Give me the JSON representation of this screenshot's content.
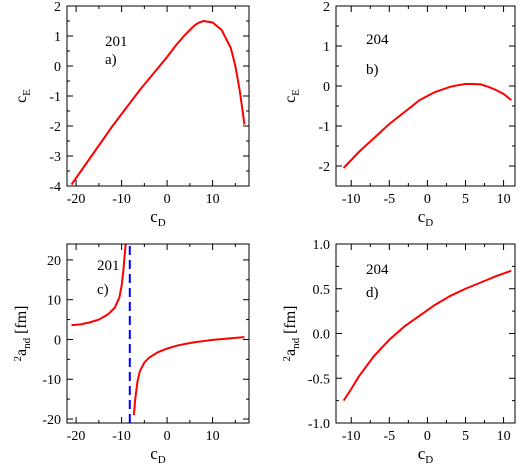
{
  "chart_data": [
    {
      "id": "a",
      "type": "line",
      "annotations": [
        "201",
        "a)"
      ],
      "xlabel": {
        "base": "c",
        "sub": "D"
      },
      "ylabel": {
        "base": "c",
        "sub": "E"
      },
      "xlim": [
        -22,
        18
      ],
      "ylim": [
        -4,
        2
      ],
      "xticks": [
        -20,
        -10,
        0,
        10
      ],
      "yticks": [
        -4,
        -3,
        -2,
        -1,
        0,
        1,
        2
      ],
      "series": [
        {
          "color": "#ff0000",
          "style": "solid",
          "x": [
            -21,
            -18,
            -15,
            -12,
            -9,
            -6,
            -3,
            0,
            2,
            4,
            6,
            7,
            8,
            10,
            12,
            14,
            15,
            16,
            17
          ],
          "y": [
            -3.95,
            -3.3,
            -2.65,
            -2.0,
            -1.4,
            -0.8,
            -0.25,
            0.3,
            0.7,
            1.05,
            1.35,
            1.45,
            1.5,
            1.45,
            1.2,
            0.6,
            0.0,
            -0.85,
            -1.95
          ]
        }
      ]
    },
    {
      "id": "b",
      "type": "line",
      "annotations": [
        "204",
        "b)"
      ],
      "xlabel": {
        "base": "c",
        "sub": "D"
      },
      "ylabel": {
        "base": "c",
        "sub": "E"
      },
      "xlim": [
        -12,
        11.5
      ],
      "ylim": [
        -2.5,
        2
      ],
      "xticks": [
        -10,
        -5,
        0,
        5,
        10
      ],
      "yticks": [
        -2,
        -1,
        0,
        1,
        2
      ],
      "series": [
        {
          "color": "#ff0000",
          "style": "solid",
          "x": [
            -11,
            -9,
            -7,
            -5,
            -3,
            -1,
            1,
            3,
            4,
            5,
            6,
            7,
            8,
            9,
            10,
            11
          ],
          "y": [
            -2.05,
            -1.65,
            -1.3,
            -0.95,
            -0.65,
            -0.35,
            -0.15,
            -0.02,
            0.02,
            0.05,
            0.05,
            0.04,
            -0.02,
            -0.1,
            -0.2,
            -0.35
          ]
        }
      ]
    },
    {
      "id": "c",
      "type": "line",
      "annotations": [
        "201",
        "c)"
      ],
      "xlabel": {
        "base": "c",
        "sub": "D"
      },
      "ylabel": {
        "sup": "2",
        "base": "a",
        "sub": "nd",
        "unit": " [fm]"
      },
      "xlim": [
        -22,
        18
      ],
      "ylim": [
        -21,
        24
      ],
      "xticks": [
        -20,
        -10,
        0,
        10
      ],
      "yticks": [
        -20,
        -10,
        0,
        10,
        20
      ],
      "series": [
        {
          "color": "#ff0000",
          "style": "solid",
          "x": [
            -21,
            -19,
            -17,
            -15,
            -13,
            -11.5,
            -10.5,
            -10.0,
            -9.6,
            -9.3,
            -9.1
          ],
          "y": [
            3.6,
            3.8,
            4.3,
            5.0,
            6.3,
            8.0,
            10.5,
            13.5,
            17.5,
            21.5,
            24
          ]
        },
        {
          "color": "#ff0000",
          "style": "solid",
          "x": [
            -7.3,
            -7.0,
            -6.5,
            -6.0,
            -5.0,
            -4.0,
            -2.0,
            0,
            2,
            4,
            6,
            8,
            10,
            12,
            14,
            16,
            17
          ],
          "y": [
            -19.0,
            -15.0,
            -10.5,
            -8.0,
            -5.8,
            -4.6,
            -3.2,
            -2.3,
            -1.6,
            -1.1,
            -0.7,
            -0.4,
            -0.1,
            0.1,
            0.3,
            0.5,
            0.6
          ]
        },
        {
          "color": "#0000ff",
          "style": "dashed",
          "x": [
            -8.2,
            -8.2
          ],
          "y": [
            -21,
            24
          ]
        }
      ]
    },
    {
      "id": "d",
      "type": "line",
      "annotations": [
        "204",
        "d)"
      ],
      "xlabel": {
        "base": "c",
        "sub": "D"
      },
      "ylabel": {
        "sup": "2",
        "base": "a",
        "sub": "nd",
        "unit": " [fm]"
      },
      "xlim": [
        -12,
        11.5
      ],
      "ylim": [
        -1.0,
        1.0
      ],
      "xticks": [
        -10,
        -5,
        0,
        5,
        10
      ],
      "yticks": [
        -1.0,
        -0.5,
        0.0,
        0.5,
        1.0
      ],
      "yticklabels": [
        "-1.0",
        "-0.5",
        "0.0",
        "0.5",
        "1.0"
      ],
      "series": [
        {
          "color": "#ff0000",
          "style": "solid",
          "x": [
            -11,
            -10,
            -9,
            -7,
            -5,
            -3,
            -1,
            1,
            3,
            5,
            7,
            9,
            11
          ],
          "y": [
            -0.75,
            -0.62,
            -0.48,
            -0.25,
            -0.07,
            0.08,
            0.2,
            0.32,
            0.42,
            0.5,
            0.57,
            0.64,
            0.7
          ]
        }
      ]
    }
  ]
}
